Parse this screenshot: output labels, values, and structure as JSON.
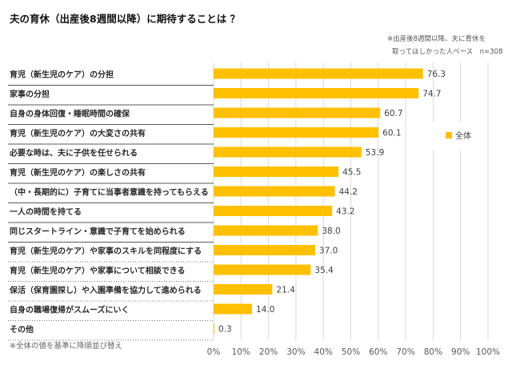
{
  "chart_data": {
    "type": "bar",
    "orientation": "horizontal",
    "title": "夫の育休（出産後8週間以降）に期待することは ？",
    "note_lines": [
      "※出産後8週間以降、夫に育休を",
      "取ってほしかった人ベース　n=308"
    ],
    "footnote": "※全体の値を基準に降順並び替え",
    "categories": [
      "育児（新生児のケア）の分担",
      "家事の分担",
      "自身の身体回復・睡眠時間の確保",
      "育児（新生児のケア）の大変さの共有",
      "必要な時は、夫に子供を任せられる",
      "育児（新生児のケア）の楽しさの共有",
      "（中・長期的に）子育てに当事者意識を持ってもらえる",
      "一人の時間を持てる",
      "同じスタートライン・意識で子育てを始められる",
      "育児（新生児のケア）や家事のスキルを同程度にする",
      "育児（新生児のケア）や家事について相談できる",
      "保活（保育園探し）や入園準備を協力して進められる",
      "自身の職場復帰がスムーズにいく",
      "その他"
    ],
    "series": [
      {
        "name": "全体",
        "color": "#FFC000",
        "values": [
          76.3,
          74.7,
          60.7,
          60.1,
          53.9,
          45.5,
          44.2,
          43.2,
          38.0,
          37.0,
          35.4,
          21.4,
          14.0,
          0.3
        ],
        "data_labels": [
          "76.3",
          "74.7",
          "60.7",
          "60.1",
          "53.9",
          "45.5",
          "44.2",
          "43.2",
          "38.0",
          "37.0",
          "35.4",
          "21.4",
          "14.0",
          "0.3"
        ]
      }
    ],
    "xlabel": "",
    "ylabel": "",
    "xlim": [
      0,
      100
    ],
    "xticks": [
      "0%",
      "10%",
      "20%",
      "30%",
      "40%",
      "50%",
      "60%",
      "70%",
      "80%",
      "90%",
      "100%"
    ],
    "grid": true,
    "legend": {
      "position": "right",
      "entries": [
        "全体"
      ]
    },
    "sample_size": "n=308"
  }
}
